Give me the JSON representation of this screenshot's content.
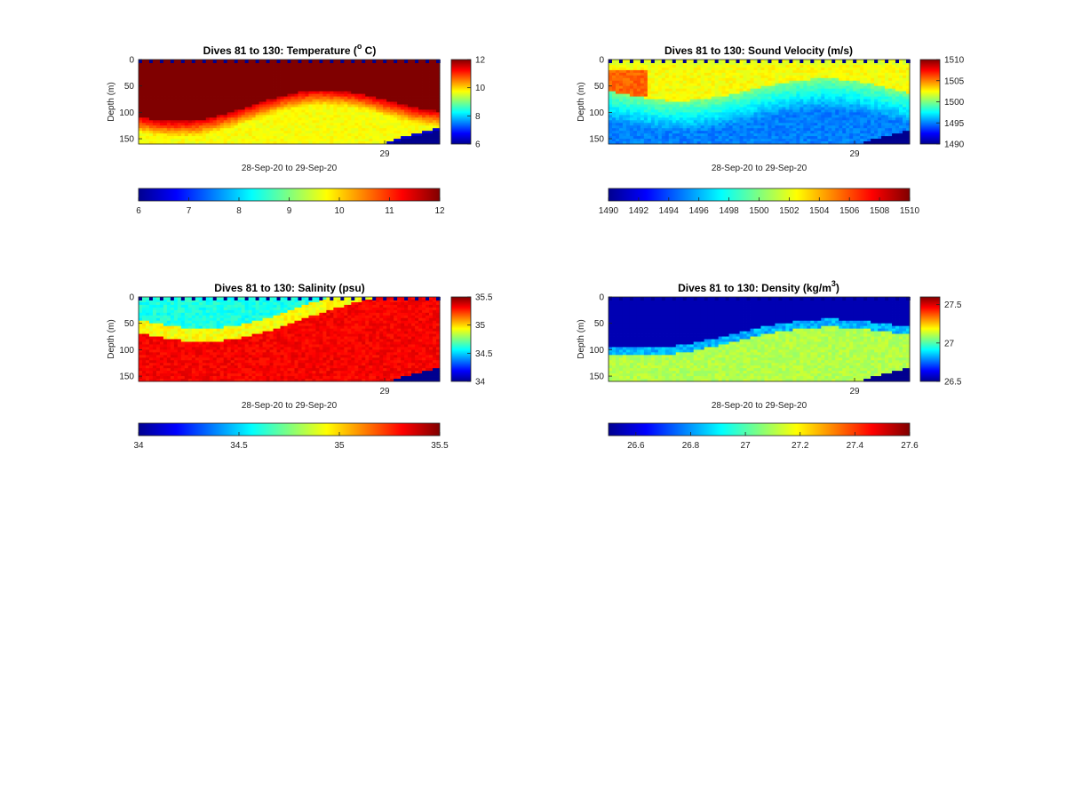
{
  "chart_data": [
    {
      "type": "heatmap",
      "title": "Dives 81 to 130: Temperature (",
      "title_sup": "o",
      "title_tail": " C)",
      "xlabel": "28-Sep-20 to 29-Sep-20",
      "ylabel": "Depth (m)",
      "x_ticks": [
        "29"
      ],
      "y_ticks": [
        "0",
        "50",
        "100",
        "150"
      ],
      "ylim": [
        0,
        160
      ],
      "colormap": "jet",
      "clim": [
        6,
        12
      ],
      "side_colorbar_ticks": [
        "6",
        "8",
        "10",
        "12"
      ],
      "bottom_colorbar_ticks": [
        "6",
        "7",
        "8",
        "9",
        "10",
        "11",
        "12"
      ],
      "upper_layer_value": 12,
      "deep_value": 9.8,
      "bottom_flag": "no-data (blue) below ~150 m at end"
    },
    {
      "type": "heatmap",
      "title": "Dives 81 to 130: Sound Velocity (m/s)",
      "title_sup": "",
      "title_tail": "",
      "xlabel": "28-Sep-20 to 29-Sep-20",
      "ylabel": "Depth (m)",
      "x_ticks": [
        "29"
      ],
      "y_ticks": [
        "0",
        "50",
        "100",
        "150"
      ],
      "ylim": [
        0,
        160
      ],
      "colormap": "jet",
      "clim": [
        1490,
        1510
      ],
      "side_colorbar_ticks": [
        "1490",
        "1495",
        "1500",
        "1505",
        "1510"
      ],
      "bottom_colorbar_ticks": [
        "1490",
        "1492",
        "1494",
        "1496",
        "1498",
        "1500",
        "1502",
        "1504",
        "1506",
        "1508",
        "1510"
      ],
      "upper_layer_value": 1502,
      "deep_value": 1495
    },
    {
      "type": "heatmap",
      "title": "Dives 81 to 130: Salinity (psu)",
      "title_sup": "",
      "title_tail": "",
      "xlabel": "28-Sep-20 to 29-Sep-20",
      "ylabel": "Depth (m)",
      "x_ticks": [
        "29"
      ],
      "y_ticks": [
        "0",
        "50",
        "100",
        "150"
      ],
      "ylim": [
        0,
        160
      ],
      "colormap": "jet",
      "clim": [
        34,
        35.5
      ],
      "side_colorbar_ticks": [
        "34",
        "34.5",
        "35",
        "35.5"
      ],
      "bottom_colorbar_ticks": [
        "34",
        "34.5",
        "35",
        "35.5"
      ],
      "upper_layer_value": 34.6,
      "deep_value": 35.4
    },
    {
      "type": "heatmap",
      "title": "Dives 81 to 130: Density (kg/m",
      "title_sup": "3",
      "title_tail": ")",
      "xlabel": "28-Sep-20 to 29-Sep-20",
      "ylabel": "Depth (m)",
      "x_ticks": [
        "29"
      ],
      "y_ticks": [
        "0",
        "50",
        "100",
        "150"
      ],
      "ylim": [
        0,
        160
      ],
      "colormap": "jet",
      "clim": [
        26.5,
        27.6
      ],
      "side_colorbar_ticks": [
        "26.5",
        "27",
        "27.5"
      ],
      "bottom_colorbar_ticks": [
        "26.6",
        "26.8",
        "27",
        "27.2",
        "27.4",
        "27.6"
      ],
      "upper_layer_value": 26.5,
      "deep_value": 27.15
    }
  ]
}
